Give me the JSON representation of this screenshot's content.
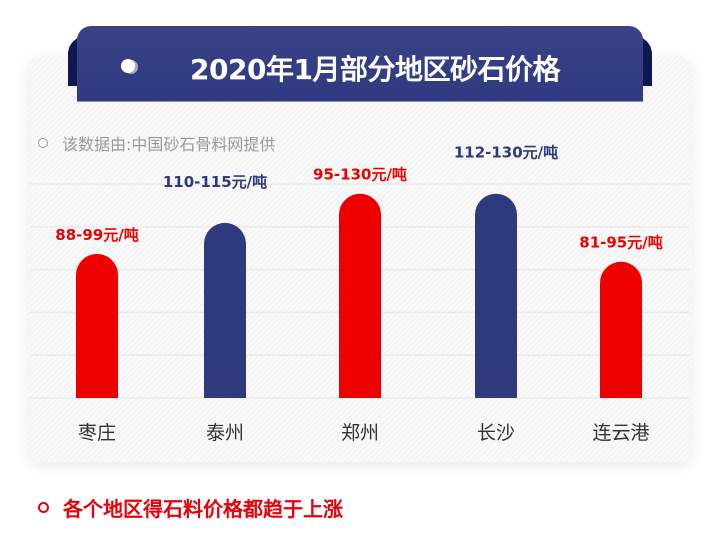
{
  "header": {
    "title": "2020年1月部分地区砂石价格"
  },
  "source_note": "该数据由:中国砂石骨料网提供",
  "footer_note": "各个地区得石料价格都趋于上涨",
  "colors": {
    "red": "#ee0000",
    "navy": "#2f3a7e",
    "banner": "#333d82"
  },
  "chart_data": {
    "type": "bar",
    "unit": "元/吨",
    "categories": [
      "枣庄",
      "泰州",
      "郑州",
      "长沙",
      "连云港"
    ],
    "series": [
      {
        "low": [
          88,
          110,
          95,
          112,
          81
        ],
        "high": [
          99,
          115,
          130,
          130,
          95
        ]
      }
    ],
    "labels": [
      "88-99元/吨",
      "110-115元/吨",
      "95-130元/吨",
      "112-130元/吨",
      "81-95元/吨"
    ],
    "bar_colors": [
      "#ee0000",
      "#2f3a7e",
      "#ee0000",
      "#2f3a7e",
      "#ee0000"
    ],
    "ylim": [
      30,
      135
    ],
    "grid": true
  }
}
